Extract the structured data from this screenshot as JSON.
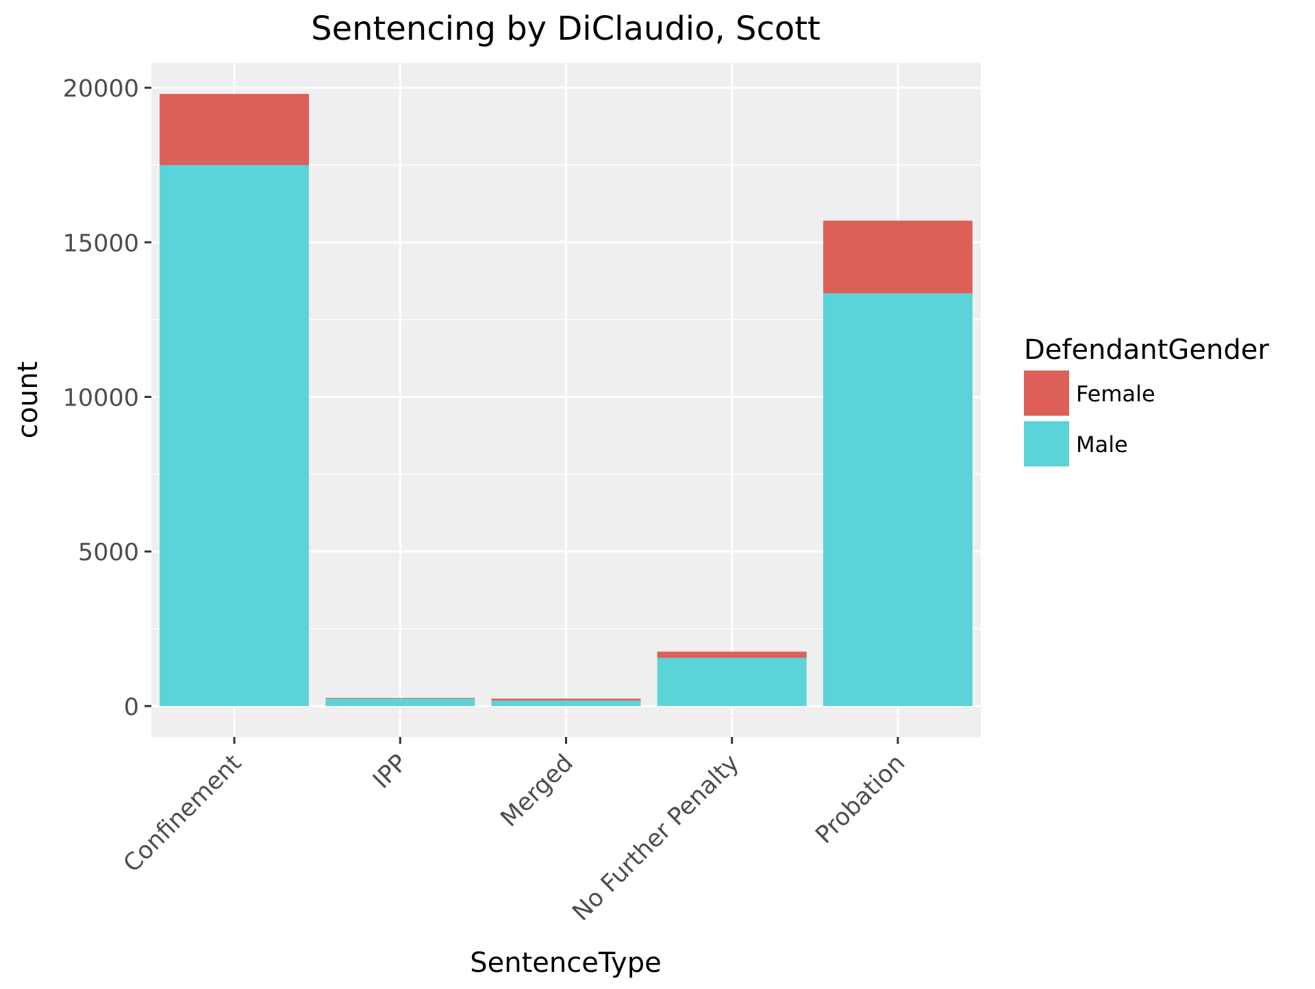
{
  "chart_data": {
    "type": "bar",
    "stacked": true,
    "title": "Sentencing by DiClaudio, Scott",
    "xlabel": "SentenceType",
    "ylabel": "count",
    "categories": [
      "Confinement",
      "IPP",
      "Merged",
      "No Further Penalty",
      "Probation"
    ],
    "series": [
      {
        "name": "Male",
        "color": "#5AD3D9",
        "values": [
          17500,
          240,
          180,
          1560,
          13350
        ]
      },
      {
        "name": "Female",
        "color": "#DC5F58",
        "values": [
          2300,
          20,
          60,
          200,
          2350
        ]
      }
    ],
    "ylim": [
      -1000,
      20800
    ],
    "yticks": [
      0,
      5000,
      10000,
      15000,
      20000
    ],
    "ytick_labels": [
      "0",
      "5000",
      "10000",
      "15000",
      "20000"
    ],
    "grid": true,
    "legend": {
      "title": "DefendantGender",
      "placement": "right",
      "entries": [
        {
          "label": "Female",
          "color": "#DC5F58"
        },
        {
          "label": "Male",
          "color": "#5AD3D9"
        }
      ]
    },
    "panel_background": "#EFEFEF",
    "grid_color": "#FFFFFF"
  }
}
